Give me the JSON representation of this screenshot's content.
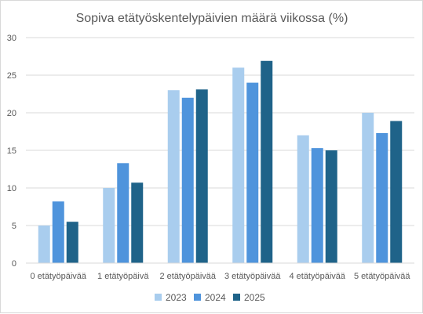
{
  "chart_data": {
    "type": "bar",
    "title": "Sopiva etätyöskentelypäivien määrä viikossa (%)",
    "xlabel": "",
    "ylabel": "",
    "categories": [
      "0 etätyöpäivää",
      "1 etätyöpäivä",
      "2 etätyöpäivää",
      "3 etätyöpäivää",
      "4 etätyöpäivää",
      "5 etätyöpäivää"
    ],
    "series": [
      {
        "name": "2023",
        "color": "#a9cdee",
        "values": [
          5.0,
          10.0,
          23.0,
          26.0,
          17.0,
          20.0
        ]
      },
      {
        "name": "2024",
        "color": "#4f94dc",
        "values": [
          8.2,
          13.3,
          22.0,
          24.0,
          15.3,
          17.3
        ]
      },
      {
        "name": "2025",
        "color": "#1f6389",
        "values": [
          5.5,
          10.7,
          23.1,
          26.9,
          15.0,
          18.9
        ]
      }
    ],
    "ylim": [
      0,
      30
    ],
    "yticks": [
      "0",
      "5",
      "10",
      "15",
      "20",
      "25",
      "30"
    ],
    "grid": true,
    "legend_position": "bottom"
  }
}
